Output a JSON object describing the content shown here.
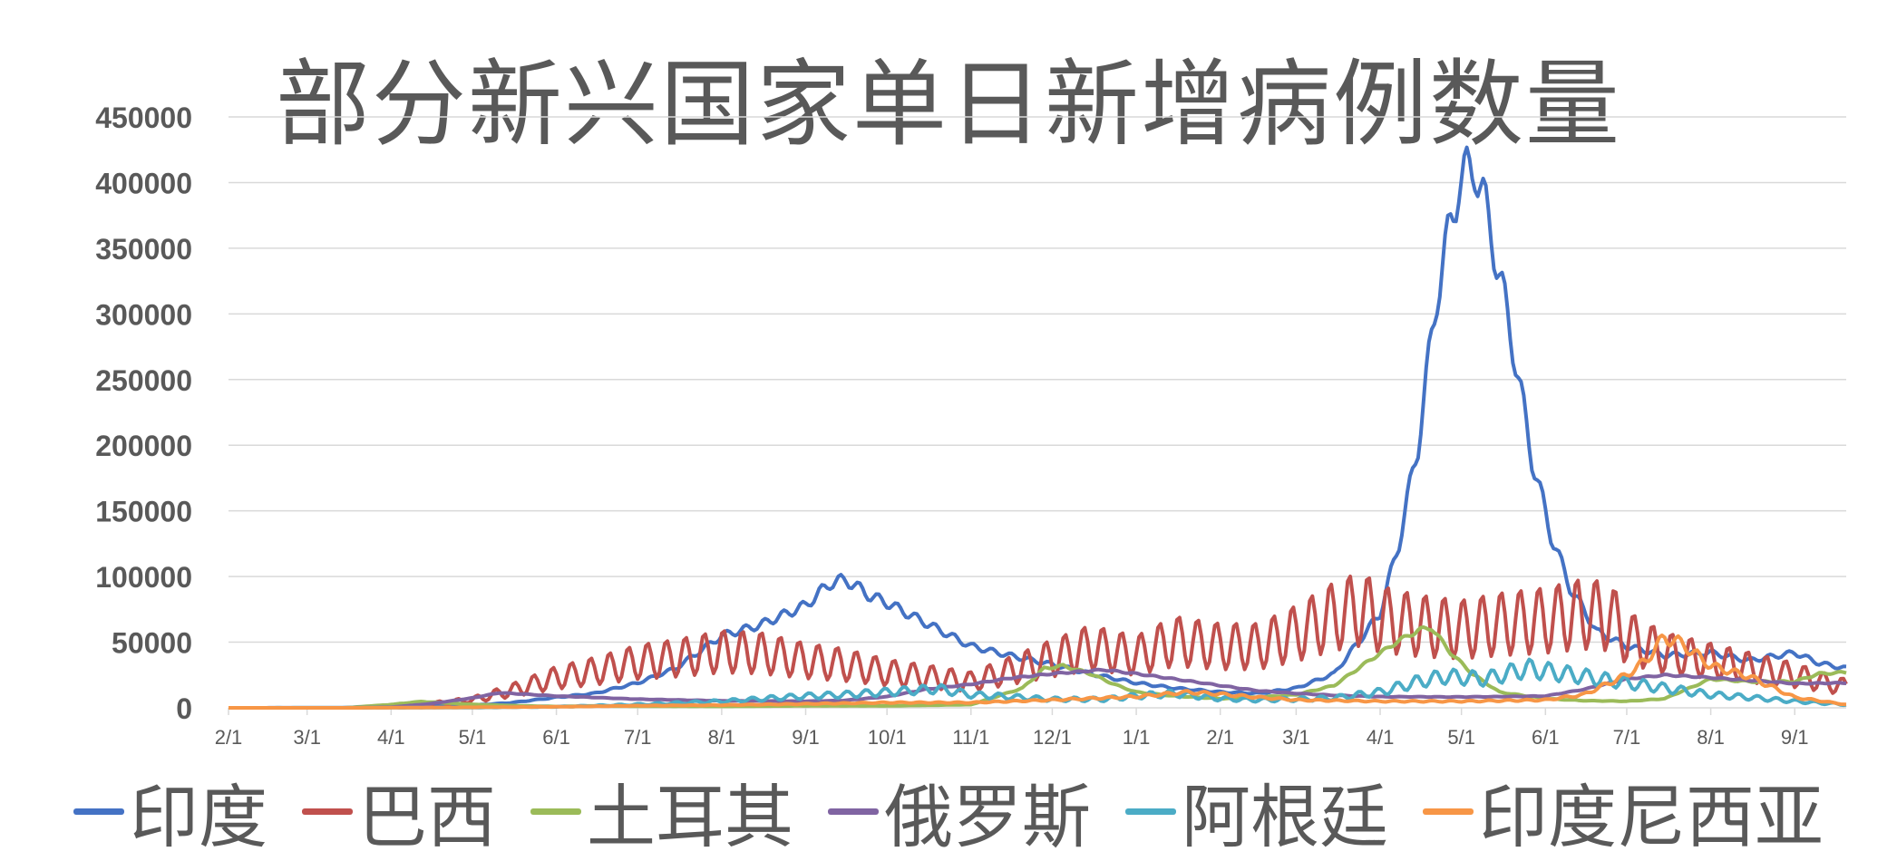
{
  "chart_data": {
    "type": "line",
    "title": "部分新兴国家单日新增病例数量",
    "ylim": [
      0,
      450000
    ],
    "y_ticks": [
      "450000",
      "400000",
      "350000",
      "300000",
      "250000",
      "200000",
      "150000",
      "100000",
      "50000",
      "0"
    ],
    "x_range": [
      "2020-02-01",
      "2021-09-20"
    ],
    "x_ticks": [
      {
        "label": "2/1",
        "date": "2020-02-01"
      },
      {
        "label": "3/1",
        "date": "2020-03-01"
      },
      {
        "label": "4/1",
        "date": "2020-04-01"
      },
      {
        "label": "5/1",
        "date": "2020-05-01"
      },
      {
        "label": "6/1",
        "date": "2020-06-01"
      },
      {
        "label": "7/1",
        "date": "2020-07-01"
      },
      {
        "label": "8/1",
        "date": "2020-08-01"
      },
      {
        "label": "9/1",
        "date": "2020-09-01"
      },
      {
        "label": "10/1",
        "date": "2020-10-01"
      },
      {
        "label": "11/1",
        "date": "2020-11-01"
      },
      {
        "label": "12/1",
        "date": "2020-12-01"
      },
      {
        "label": "1/1",
        "date": "2021-01-01"
      },
      {
        "label": "2/1",
        "date": "2021-02-01"
      },
      {
        "label": "3/1",
        "date": "2021-03-01"
      },
      {
        "label": "4/1",
        "date": "2021-04-01"
      },
      {
        "label": "5/1",
        "date": "2021-05-01"
      },
      {
        "label": "6/1",
        "date": "2021-06-01"
      },
      {
        "label": "7/1",
        "date": "2021-07-01"
      },
      {
        "label": "8/1",
        "date": "2021-08-01"
      },
      {
        "label": "9/1",
        "date": "2021-09-01"
      }
    ],
    "gridlines": "horizontal",
    "legend_position": "bottom",
    "series": [
      {
        "name": "印度",
        "color": "#4472C4",
        "weekly_ripple": 0.05,
        "points": [
          [
            "2020-02-01",
            0
          ],
          [
            "2020-03-15",
            100
          ],
          [
            "2020-04-01",
            500
          ],
          [
            "2020-04-15",
            1200
          ],
          [
            "2020-05-01",
            2000
          ],
          [
            "2020-05-15",
            3800
          ],
          [
            "2020-06-01",
            8000
          ],
          [
            "2020-06-15",
            11000
          ],
          [
            "2020-07-01",
            19000
          ],
          [
            "2020-07-15",
            30000
          ],
          [
            "2020-08-01",
            55000
          ],
          [
            "2020-08-15",
            63000
          ],
          [
            "2020-09-01",
            78000
          ],
          [
            "2020-09-10",
            95000
          ],
          [
            "2020-09-16",
            97500
          ],
          [
            "2020-09-25",
            85000
          ],
          [
            "2020-10-01",
            80000
          ],
          [
            "2020-10-15",
            65000
          ],
          [
            "2020-11-01",
            47000
          ],
          [
            "2020-11-15",
            40000
          ],
          [
            "2020-12-01",
            33000
          ],
          [
            "2020-12-15",
            26000
          ],
          [
            "2021-01-01",
            19000
          ],
          [
            "2021-01-15",
            15000
          ],
          [
            "2021-02-01",
            12000
          ],
          [
            "2021-02-15",
            11000
          ],
          [
            "2021-03-01",
            15000
          ],
          [
            "2021-03-15",
            26000
          ],
          [
            "2021-03-25",
            53000
          ],
          [
            "2021-04-01",
            72000
          ],
          [
            "2021-04-08",
            126000
          ],
          [
            "2021-04-15",
            200000
          ],
          [
            "2021-04-22",
            315000
          ],
          [
            "2021-04-30",
            400000
          ],
          [
            "2021-05-06",
            414000
          ],
          [
            "2021-05-12",
            362000
          ],
          [
            "2021-05-20",
            276000
          ],
          [
            "2021-05-27",
            190000
          ],
          [
            "2021-06-03",
            132000
          ],
          [
            "2021-06-10",
            92000
          ],
          [
            "2021-06-20",
            58000
          ],
          [
            "2021-07-01",
            47000
          ],
          [
            "2021-07-15",
            40000
          ],
          [
            "2021-08-01",
            42000
          ],
          [
            "2021-08-15",
            36000
          ],
          [
            "2021-09-01",
            42000
          ],
          [
            "2021-09-10",
            34000
          ],
          [
            "2021-09-20",
            30000
          ]
        ]
      },
      {
        "name": "巴西",
        "color": "#C0504D",
        "weekly_ripple": 0.38,
        "points": [
          [
            "2020-02-01",
            0
          ],
          [
            "2020-03-15",
            0
          ],
          [
            "2020-04-01",
            1000
          ],
          [
            "2020-04-15",
            3000
          ],
          [
            "2020-05-01",
            6000
          ],
          [
            "2020-05-15",
            13000
          ],
          [
            "2020-06-01",
            23000
          ],
          [
            "2020-06-15",
            28000
          ],
          [
            "2020-07-01",
            35000
          ],
          [
            "2020-07-15",
            38000
          ],
          [
            "2020-08-01",
            43000
          ],
          [
            "2020-08-15",
            42000
          ],
          [
            "2020-09-01",
            36000
          ],
          [
            "2020-09-15",
            33000
          ],
          [
            "2020-10-01",
            27000
          ],
          [
            "2020-10-15",
            24000
          ],
          [
            "2020-11-01",
            20000
          ],
          [
            "2020-11-15",
            28000
          ],
          [
            "2020-12-01",
            38000
          ],
          [
            "2020-12-15",
            46000
          ],
          [
            "2021-01-01",
            40000
          ],
          [
            "2021-01-15",
            51000
          ],
          [
            "2021-02-01",
            47000
          ],
          [
            "2021-02-15",
            47000
          ],
          [
            "2021-03-01",
            57000
          ],
          [
            "2021-03-15",
            70000
          ],
          [
            "2021-03-25",
            76000
          ],
          [
            "2021-04-01",
            68000
          ],
          [
            "2021-04-15",
            63000
          ],
          [
            "2021-05-01",
            60000
          ],
          [
            "2021-05-15",
            64000
          ],
          [
            "2021-06-01",
            67000
          ],
          [
            "2021-06-15",
            72000
          ],
          [
            "2021-06-25",
            70000
          ],
          [
            "2021-07-01",
            54000
          ],
          [
            "2021-07-15",
            42000
          ],
          [
            "2021-08-01",
            36000
          ],
          [
            "2021-08-15",
            31000
          ],
          [
            "2021-09-01",
            25000
          ],
          [
            "2021-09-15",
            18000
          ],
          [
            "2021-09-20",
            16000
          ]
        ]
      },
      {
        "name": "土耳其",
        "color": "#9BBB59",
        "weekly_ripple": 0.03,
        "points": [
          [
            "2020-02-01",
            0
          ],
          [
            "2020-03-15",
            0
          ],
          [
            "2020-04-01",
            2500
          ],
          [
            "2020-04-12",
            4800
          ],
          [
            "2020-05-01",
            2600
          ],
          [
            "2020-05-15",
            1700
          ],
          [
            "2020-06-01",
            1000
          ],
          [
            "2020-06-15",
            1500
          ],
          [
            "2020-07-01",
            1200
          ],
          [
            "2020-08-01",
            1100
          ],
          [
            "2020-09-01",
            1500
          ],
          [
            "2020-10-01",
            1500
          ],
          [
            "2020-11-01",
            2400
          ],
          [
            "2020-11-20",
            15000
          ],
          [
            "2020-11-28",
            30000
          ],
          [
            "2020-12-05",
            32000
          ],
          [
            "2020-12-15",
            26000
          ],
          [
            "2020-12-25",
            17000
          ],
          [
            "2021-01-01",
            12000
          ],
          [
            "2021-01-15",
            9000
          ],
          [
            "2021-02-01",
            7000
          ],
          [
            "2021-02-15",
            8000
          ],
          [
            "2021-03-01",
            10000
          ],
          [
            "2021-03-15",
            17000
          ],
          [
            "2021-03-28",
            36000
          ],
          [
            "2021-04-07",
            50000
          ],
          [
            "2021-04-15",
            59000
          ],
          [
            "2021-04-20",
            61000
          ],
          [
            "2021-04-27",
            42000
          ],
          [
            "2021-05-05",
            26000
          ],
          [
            "2021-05-15",
            12000
          ],
          [
            "2021-06-01",
            7000
          ],
          [
            "2021-06-15",
            5500
          ],
          [
            "2021-07-01",
            5000
          ],
          [
            "2021-07-15",
            7000
          ],
          [
            "2021-08-01",
            22000
          ],
          [
            "2021-08-15",
            20000
          ],
          [
            "2021-09-01",
            20000
          ],
          [
            "2021-09-10",
            26000
          ],
          [
            "2021-09-20",
            27000
          ]
        ]
      },
      {
        "name": "俄罗斯",
        "color": "#8064A2",
        "weekly_ripple": 0.02,
        "points": [
          [
            "2020-02-01",
            0
          ],
          [
            "2020-03-15",
            0
          ],
          [
            "2020-04-01",
            500
          ],
          [
            "2020-04-15",
            3000
          ],
          [
            "2020-05-01",
            7500
          ],
          [
            "2020-05-11",
            11500
          ],
          [
            "2020-06-01",
            9000
          ],
          [
            "2020-07-01",
            6600
          ],
          [
            "2020-08-01",
            5400
          ],
          [
            "2020-09-01",
            5000
          ],
          [
            "2020-09-15",
            5600
          ],
          [
            "2020-10-01",
            8500
          ],
          [
            "2020-10-15",
            14000
          ],
          [
            "2020-11-01",
            18000
          ],
          [
            "2020-11-15",
            22500
          ],
          [
            "2020-12-01",
            26000
          ],
          [
            "2020-12-20",
            29000
          ],
          [
            "2021-01-01",
            26000
          ],
          [
            "2021-01-15",
            22000
          ],
          [
            "2021-02-01",
            17000
          ],
          [
            "2021-02-15",
            13000
          ],
          [
            "2021-03-01",
            11000
          ],
          [
            "2021-03-15",
            9500
          ],
          [
            "2021-04-01",
            8500
          ],
          [
            "2021-05-01",
            8300
          ],
          [
            "2021-05-15",
            8500
          ],
          [
            "2021-06-01",
            9000
          ],
          [
            "2021-06-15",
            14000
          ],
          [
            "2021-07-01",
            22000
          ],
          [
            "2021-07-15",
            25000
          ],
          [
            "2021-08-01",
            23000
          ],
          [
            "2021-08-15",
            21000
          ],
          [
            "2021-09-01",
            18500
          ],
          [
            "2021-09-20",
            19000
          ]
        ]
      },
      {
        "name": "阿根廷",
        "color": "#4BACC6",
        "weekly_ripple": 0.25,
        "points": [
          [
            "2020-02-01",
            0
          ],
          [
            "2020-04-01",
            100
          ],
          [
            "2020-05-01",
            200
          ],
          [
            "2020-06-01",
            800
          ],
          [
            "2020-07-01",
            2500
          ],
          [
            "2020-08-01",
            5000
          ],
          [
            "2020-09-01",
            9000
          ],
          [
            "2020-09-15",
            10000
          ],
          [
            "2020-10-01",
            12000
          ],
          [
            "2020-10-20",
            14500
          ],
          [
            "2020-11-01",
            10000
          ],
          [
            "2020-11-15",
            8500
          ],
          [
            "2020-12-01",
            6500
          ],
          [
            "2020-12-20",
            6500
          ],
          [
            "2021-01-01",
            9000
          ],
          [
            "2021-01-15",
            11000
          ],
          [
            "2021-02-01",
            7000
          ],
          [
            "2021-02-15",
            6000
          ],
          [
            "2021-03-01",
            6500
          ],
          [
            "2021-03-15",
            7500
          ],
          [
            "2021-04-01",
            12000
          ],
          [
            "2021-04-15",
            20000
          ],
          [
            "2021-04-25",
            24000
          ],
          [
            "2021-05-10",
            22000
          ],
          [
            "2021-05-25",
            30000
          ],
          [
            "2021-06-01",
            28000
          ],
          [
            "2021-06-15",
            24000
          ],
          [
            "2021-07-01",
            19000
          ],
          [
            "2021-07-15",
            15000
          ],
          [
            "2021-08-01",
            10000
          ],
          [
            "2021-08-15",
            8000
          ],
          [
            "2021-09-01",
            5000
          ],
          [
            "2021-09-20",
            2500
          ]
        ]
      },
      {
        "name": "印度尼西亚",
        "color": "#F79646",
        "weekly_ripple": 0.1,
        "points": [
          [
            "2020-02-01",
            0
          ],
          [
            "2020-03-15",
            0
          ],
          [
            "2020-04-01",
            100
          ],
          [
            "2020-05-01",
            400
          ],
          [
            "2020-06-01",
            800
          ],
          [
            "2020-07-01",
            1600
          ],
          [
            "2020-08-01",
            2100
          ],
          [
            "2020-09-01",
            3000
          ],
          [
            "2020-10-01",
            4000
          ],
          [
            "2020-11-01",
            4000
          ],
          [
            "2020-12-01",
            6000
          ],
          [
            "2021-01-01",
            8500
          ],
          [
            "2021-01-20",
            12000
          ],
          [
            "2021-02-01",
            10500
          ],
          [
            "2021-02-15",
            8000
          ],
          [
            "2021-03-01",
            6000
          ],
          [
            "2021-04-01",
            5000
          ],
          [
            "2021-05-01",
            5000
          ],
          [
            "2021-06-01",
            6000
          ],
          [
            "2021-06-15",
            10000
          ],
          [
            "2021-07-01",
            25000
          ],
          [
            "2021-07-08",
            36000
          ],
          [
            "2021-07-15",
            54000
          ],
          [
            "2021-07-22",
            48000
          ],
          [
            "2021-08-01",
            32000
          ],
          [
            "2021-08-15",
            24000
          ],
          [
            "2021-09-01",
            8000
          ],
          [
            "2021-09-20",
            2500
          ]
        ]
      }
    ]
  }
}
